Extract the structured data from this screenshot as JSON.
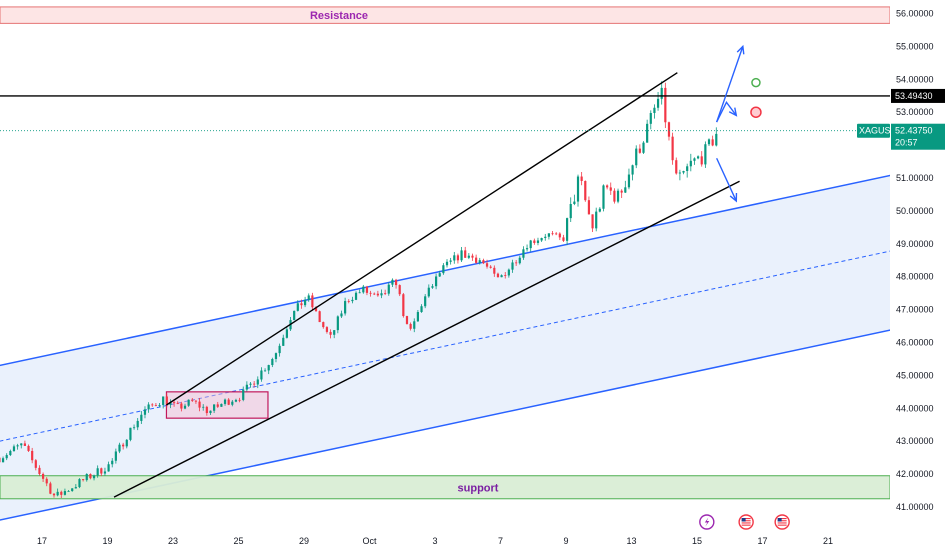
{
  "chart_data": {
    "type": "candlestick",
    "symbol": "XAGUSD",
    "ylim": [
      40.8,
      56.2
    ],
    "y_ticks": [
      "41.00000",
      "42.00000",
      "43.00000",
      "44.00000",
      "45.00000",
      "46.00000",
      "47.00000",
      "48.00000",
      "49.00000",
      "50.00000",
      "51.00000",
      "52.00000",
      "53.00000",
      "54.00000",
      "55.00000",
      "56.00000"
    ],
    "x_ticks": [
      {
        "label": "17",
        "day": 0
      },
      {
        "label": "19",
        "day": 2
      },
      {
        "label": "23",
        "day": 4
      },
      {
        "label": "25",
        "day": 6
      },
      {
        "label": "29",
        "day": 8
      },
      {
        "label": "Oct",
        "day": 10
      },
      {
        "label": "3",
        "day": 12
      },
      {
        "label": "7",
        "day": 14
      },
      {
        "label": "9",
        "day": 16
      },
      {
        "label": "13",
        "day": 18
      },
      {
        "label": "15",
        "day": 20
      },
      {
        "label": "17",
        "day": 22
      },
      {
        "label": "21",
        "day": 24
      }
    ],
    "price_path": [
      [
        -1.3,
        42.5
      ],
      [
        -0.6,
        42.9
      ],
      [
        -0.3,
        42.4
      ],
      [
        0.4,
        41.3
      ],
      [
        0.9,
        41.6
      ],
      [
        1.4,
        41.9
      ],
      [
        2.1,
        42.3
      ],
      [
        2.6,
        43.2
      ],
      [
        3.1,
        43.9
      ],
      [
        3.7,
        44.3
      ],
      [
        4.1,
        44.0
      ],
      [
        4.6,
        44.2
      ],
      [
        5.1,
        43.9
      ],
      [
        5.6,
        44.2
      ],
      [
        6.1,
        44.4
      ],
      [
        6.6,
        45.0
      ],
      [
        7.1,
        45.6
      ],
      [
        7.6,
        46.8
      ],
      [
        8.1,
        47.4
      ],
      [
        8.4,
        46.8
      ],
      [
        8.8,
        46.1
      ],
      [
        9.3,
        47.3
      ],
      [
        9.8,
        47.6
      ],
      [
        10.3,
        47.3
      ],
      [
        10.8,
        47.9
      ],
      [
        11.2,
        46.2
      ],
      [
        11.6,
        47.2
      ],
      [
        12.2,
        48.2
      ],
      [
        12.8,
        48.7
      ],
      [
        13.4,
        48.5
      ],
      [
        13.9,
        47.9
      ],
      [
        14.3,
        48.3
      ],
      [
        14.8,
        49.0
      ],
      [
        15.4,
        49.3
      ],
      [
        15.9,
        49.1
      ],
      [
        16.4,
        51.0
      ],
      [
        16.8,
        49.5
      ],
      [
        17.2,
        50.7
      ],
      [
        17.6,
        50.4
      ],
      [
        18.1,
        51.6
      ],
      [
        18.6,
        52.8
      ],
      [
        18.9,
        53.6
      ],
      [
        19.2,
        51.8
      ],
      [
        19.4,
        50.8
      ],
      [
        19.8,
        51.4
      ],
      [
        20.3,
        51.8
      ],
      [
        20.6,
        52.4
      ]
    ],
    "last_price": "52.43750",
    "countdown": "20:57",
    "horizontal_level": "53.49430",
    "zones": [
      {
        "name": "Resistance",
        "from": 55.7,
        "to": 56.2,
        "color": "#ef9a9a"
      },
      {
        "name": "support",
        "from": 41.25,
        "to": 41.95,
        "color": "#9ccc9c"
      }
    ],
    "blue_channel": {
      "upper": [
        [
          -1.3,
          45.3
        ],
        [
          26,
          51.1
        ]
      ],
      "mid": [
        [
          -1.3,
          43.0
        ],
        [
          26,
          48.8
        ]
      ],
      "lower": [
        [
          -1.3,
          40.6
        ],
        [
          26,
          46.4
        ]
      ]
    },
    "black_channel": {
      "upper": [
        [
          3.8,
          44.1
        ],
        [
          19.4,
          54.2
        ]
      ],
      "lower": [
        [
          2.2,
          41.3
        ],
        [
          21.3,
          50.9
        ]
      ]
    },
    "consolidation_box": {
      "x0": 3.8,
      "x1": 6.9,
      "y0": 43.7,
      "y1": 44.5
    },
    "forecast_arrows": [
      [
        [
          20.6,
          52.7
        ],
        [
          21.4,
          55.0
        ]
      ],
      [
        [
          20.6,
          52.7
        ],
        [
          20.9,
          53.3
        ],
        [
          21.2,
          52.9
        ]
      ],
      [
        [
          20.6,
          51.6
        ],
        [
          21.2,
          50.3
        ]
      ]
    ],
    "markers": [
      {
        "day": 21.8,
        "price": 53.9,
        "color": "#4caf50",
        "fill": "#ffffff"
      },
      {
        "day": 21.8,
        "price": 53.0,
        "color": "#f23645",
        "fill": "#ffcdd2"
      }
    ],
    "event_icons": [
      {
        "day": 20.3,
        "kind": "lightning-icon"
      },
      {
        "day": 21.5,
        "kind": "us-flag-icon"
      },
      {
        "day": 22.6,
        "kind": "us-flag-icon"
      }
    ],
    "colors": {
      "up": "#089981",
      "down": "#f23645",
      "channel": "#2962ff",
      "channel_fill": "#e3ecfb",
      "trend": "#000000",
      "price_tag": "#089981",
      "resistance_text": "#9c27b0",
      "support_text": "#7b1fa2"
    }
  }
}
